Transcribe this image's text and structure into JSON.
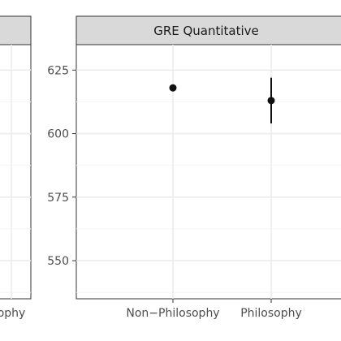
{
  "chart_data": [
    {
      "type": "scatter",
      "title": "",
      "strip_label": "",
      "categories": [
        "Non−Philosophy",
        "Philosophy"
      ],
      "category_labels": [
        "",
        "Philosophy"
      ],
      "category_label_partial": "ophy",
      "points": [],
      "y_ticks": [],
      "ylim": [
        535,
        635
      ],
      "grid": true,
      "xlabel": "",
      "ylabel": ""
    },
    {
      "type": "scatter",
      "title": "",
      "strip_label": "GRE Quantitative",
      "categories": [
        "Non−Philosophy",
        "Philosophy"
      ],
      "category_labels": [
        "Non−Philosophy",
        "Philosophy"
      ],
      "points": [
        {
          "category": "Non−Philosophy",
          "y": 618,
          "lower": 617,
          "upper": 619
        },
        {
          "category": "Philosophy",
          "y": 613,
          "lower": 604,
          "upper": 622
        }
      ],
      "y_ticks": [
        550,
        575,
        600,
        625
      ],
      "ylim": [
        535,
        635
      ],
      "grid": true,
      "xlabel": "",
      "ylabel": ""
    }
  ],
  "colors": {
    "strip_fill": "#d9d9d9",
    "panel_border": "#333333",
    "grid_major": "#ebebeb",
    "grid_minor": "#f4f4f4",
    "point": "#111111"
  }
}
